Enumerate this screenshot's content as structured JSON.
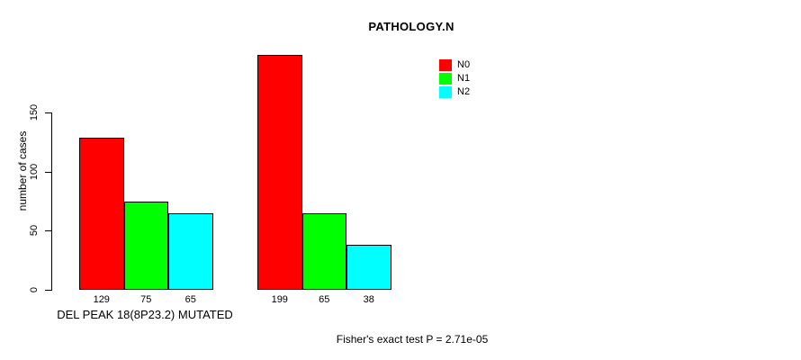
{
  "chart_data": {
    "type": "bar",
    "title": "PATHOLOGY.N",
    "xlabel": "DEL PEAK 18(8P23.2) MUTATED",
    "ylabel": "number of cases",
    "yticks": [
      0,
      50,
      100,
      150
    ],
    "ylim": [
      0,
      210
    ],
    "grid": false,
    "legend_position": "top-right",
    "categories": [
      "DEL PEAK 18(8P23.2) MUTATED",
      ""
    ],
    "series": [
      {
        "name": "N0",
        "color": "#ff0000",
        "values": [
          129,
          199
        ]
      },
      {
        "name": "N1",
        "color": "#00ff00",
        "values": [
          75,
          65
        ]
      },
      {
        "name": "N2",
        "color": "#00ffff",
        "values": [
          65,
          38
        ]
      }
    ],
    "bar_value_labels": [
      [
        "129",
        "75",
        "65"
      ],
      [
        "199",
        "65",
        "38"
      ]
    ],
    "annotation": "Fisher's exact test P = 2.71e-05"
  },
  "colors": {
    "N0": "#ff0000",
    "N1": "#00ff00",
    "N2": "#00ffff",
    "axis": "#000000",
    "background": "#ffffff"
  }
}
